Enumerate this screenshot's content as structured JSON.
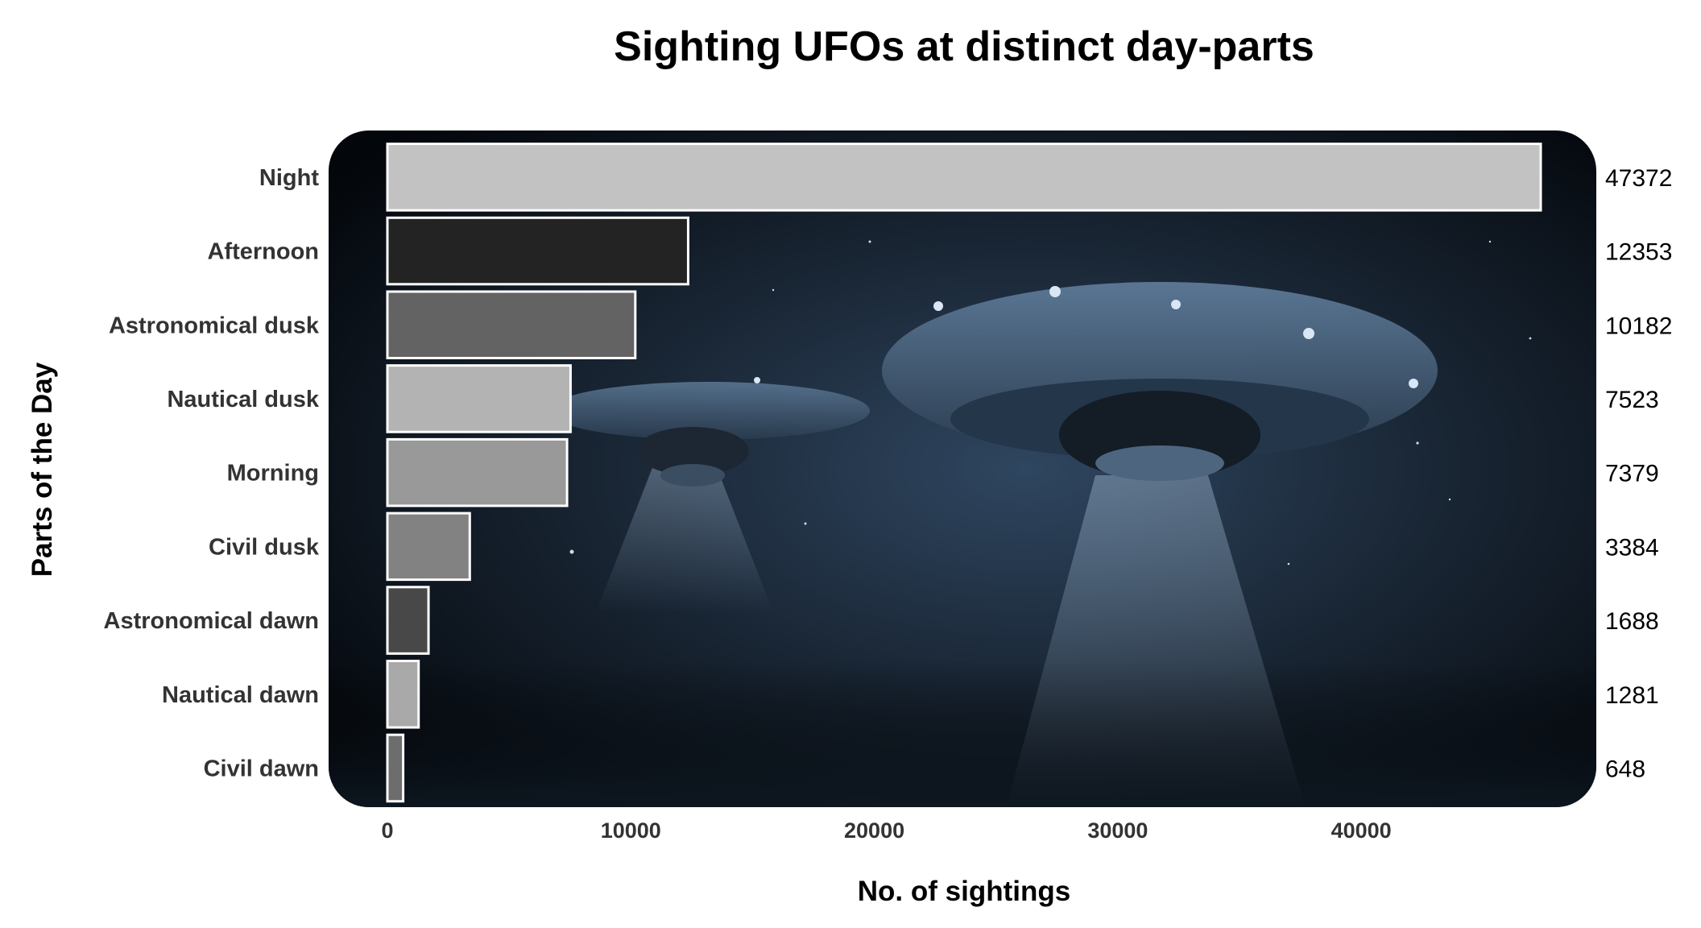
{
  "chart_data": {
    "type": "bar",
    "orientation": "horizontal",
    "title": "Sighting UFOs at distinct day-parts",
    "xlabel": "No. of sightings",
    "ylabel": "Parts of the Day",
    "categories": [
      "Night",
      "Afternoon",
      "Astronomical dusk",
      "Nautical dusk",
      "Morning",
      "Civil dusk",
      "Astronomical dawn",
      "Nautical dawn",
      "Civil dawn"
    ],
    "values": [
      47372,
      12353,
      10182,
      7523,
      7379,
      3384,
      1688,
      1281,
      648
    ],
    "value_labels": [
      "47372",
      "12353",
      "10182",
      "7523",
      "7379",
      "3384",
      "1688",
      "1281",
      "648"
    ],
    "bar_colors": [
      "#c2c2c2",
      "#232323",
      "#636363",
      "#b3b3b3",
      "#999999",
      "#828282",
      "#484848",
      "#a9a9a9",
      "#6d6d6d"
    ],
    "bar_outline_color": "#ffffff",
    "xlim": [
      0,
      47372
    ],
    "x_ticks": [
      0,
      10000,
      20000,
      30000,
      40000
    ],
    "x_tick_labels": [
      "0",
      "10000",
      "20000",
      "30000",
      "40000"
    ],
    "grid": false,
    "legend": "none",
    "panel_background": "night sky photograph with two flying saucers"
  }
}
